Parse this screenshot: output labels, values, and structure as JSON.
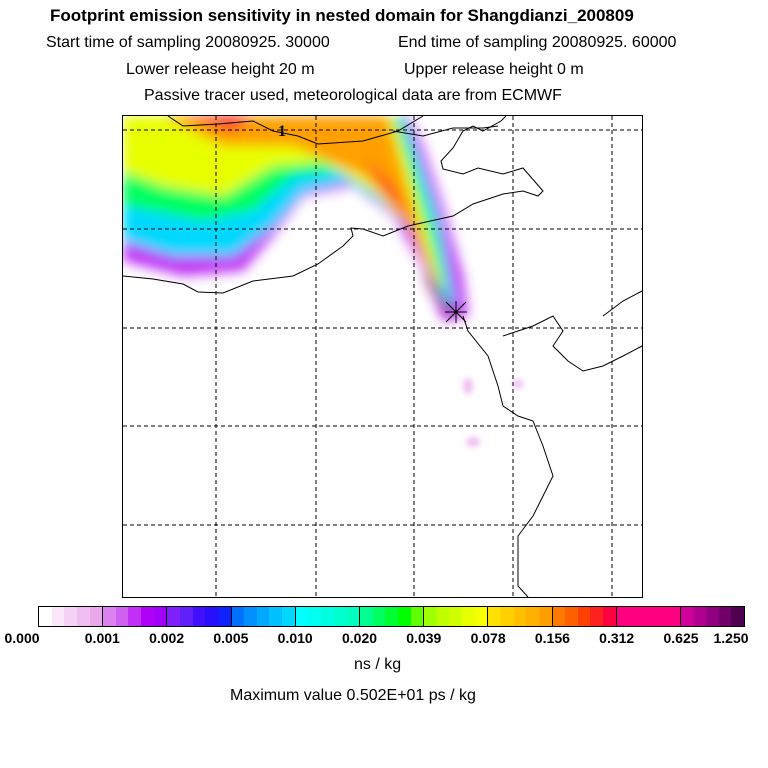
{
  "titles": {
    "line1": "Footprint emission sensitivity in nested domain for Shangdianzi_200809",
    "start": "Start time of sampling 20080925. 30000",
    "end": "End time of sampling 20080925. 60000",
    "lower": "Lower release height   20 m",
    "upper": "Upper release height    0 m",
    "line4": "Passive tracer used, meteorological data are from ECMWF"
  },
  "map": {
    "contour_label": "1",
    "receptor_marker": "star-icon"
  },
  "colorbar": {
    "labels": [
      "0.000",
      "0.001",
      "0.002",
      "0.005",
      "0.010",
      "0.020",
      "0.039",
      "0.078",
      "0.156",
      "0.312",
      "0.625",
      "1.250"
    ],
    "segments": [
      [
        "#ffffff",
        "#fbe6fb",
        "#f6d2f6",
        "#f0bdf0",
        "#eaa8ea"
      ],
      [
        "#dc82f0",
        "#d060f0",
        "#c030f5",
        "#b000f8",
        "#a000fa"
      ],
      [
        "#8020fa",
        "#6020fa",
        "#4010fc",
        "#2810fd",
        "#1020ff"
      ],
      [
        "#0070ff",
        "#0090ff",
        "#00a8ff",
        "#00c0ff",
        "#00d8ff"
      ],
      [
        "#00ffff",
        "#00fff0",
        "#00ffe0",
        "#00ffd0",
        "#00ffc0"
      ],
      [
        "#00ff90",
        "#00ff60",
        "#00ff30",
        "#00ff00",
        "#60ff00"
      ],
      [
        "#a0ff00",
        "#c0ff00",
        "#d0ff00",
        "#e8ff00",
        "#f8ff00"
      ],
      [
        "#ffe000",
        "#ffd000",
        "#ffc000",
        "#ffb000",
        "#ffa000"
      ],
      [
        "#ff7800",
        "#ff6000",
        "#ff4000",
        "#ff2020",
        "#ff0040"
      ],
      [
        "#ff0080",
        "#ff0080",
        "#ff0080",
        "#ff0080",
        "#ff0080"
      ],
      [
        "#d0009a",
        "#b00090",
        "#900080",
        "#700068",
        "#500050"
      ]
    ],
    "units": "ns / kg",
    "max_value": "Maximum value  0.502E+01 ps / kg"
  }
}
